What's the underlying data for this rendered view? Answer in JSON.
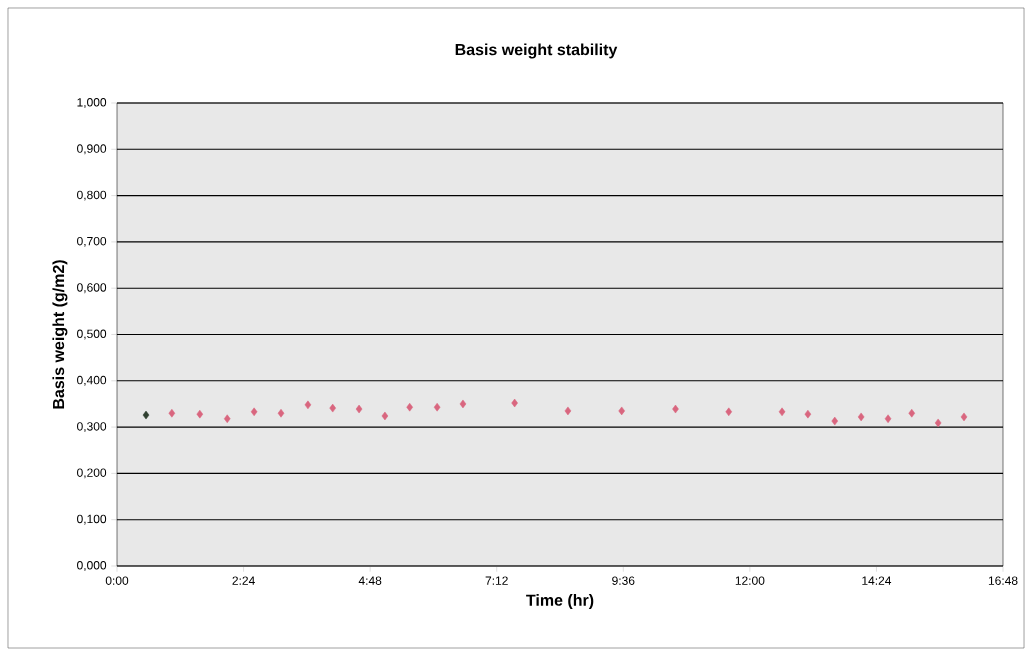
{
  "chart_data": {
    "type": "scatter",
    "title": "Basis weight stability",
    "xlabel": "Time (hr)",
    "ylabel": "Basis weight (g/m2)",
    "x": [
      0.55,
      1.04,
      1.57,
      2.09,
      2.6,
      3.11,
      3.62,
      4.09,
      4.59,
      5.08,
      5.55,
      6.07,
      6.56,
      7.54,
      8.55,
      9.57,
      10.59,
      11.6,
      12.61,
      13.1,
      13.61,
      14.11,
      14.62,
      15.07,
      15.57,
      16.06
    ],
    "values": [
      0.326,
      0.33,
      0.328,
      0.318,
      0.333,
      0.33,
      0.348,
      0.341,
      0.339,
      0.324,
      0.343,
      0.343,
      0.35,
      0.352,
      0.335,
      0.335,
      0.339,
      0.333,
      0.333,
      0.328,
      0.313,
      0.322,
      0.318,
      0.33,
      0.309,
      0.322
    ],
    "colors": [
      "#2f4030",
      "#d9667f",
      "#d9667f",
      "#d9667f",
      "#d9667f",
      "#d9667f",
      "#d9667f",
      "#d9667f",
      "#d9667f",
      "#d9667f",
      "#d9667f",
      "#d9667f",
      "#d9667f",
      "#d9667f",
      "#d9667f",
      "#d9667f",
      "#d9667f",
      "#d9667f",
      "#d9667f",
      "#d9667f",
      "#d9667f",
      "#d9667f",
      "#d9667f",
      "#d9667f",
      "#d9667f",
      "#d9667f"
    ],
    "marker": "diamond",
    "grid": "y",
    "xlim": [
      0,
      16.8
    ],
    "ylim": [
      0,
      1
    ],
    "xticks": [
      {
        "value": 0,
        "label": "0:00"
      },
      {
        "value": 2.4,
        "label": "2:24"
      },
      {
        "value": 4.8,
        "label": "4:48"
      },
      {
        "value": 7.2,
        "label": "7:12"
      },
      {
        "value": 9.6,
        "label": "9:36"
      },
      {
        "value": 12,
        "label": "12:00"
      },
      {
        "value": 14.4,
        "label": "14:24"
      },
      {
        "value": 16.8,
        "label": "16:48"
      }
    ],
    "yticks": [
      {
        "value": 0,
        "label": "0,000"
      },
      {
        "value": 0.1,
        "label": "0,100"
      },
      {
        "value": 0.2,
        "label": "0,200"
      },
      {
        "value": 0.3,
        "label": "0,300"
      },
      {
        "value": 0.4,
        "label": "0,400"
      },
      {
        "value": 0.5,
        "label": "0,500"
      },
      {
        "value": 0.6,
        "label": "0,600"
      },
      {
        "value": 0.7,
        "label": "0,700"
      },
      {
        "value": 0.8,
        "label": "0,800"
      },
      {
        "value": 0.9,
        "label": "0,900"
      },
      {
        "value": 1,
        "label": "1,000"
      }
    ]
  }
}
